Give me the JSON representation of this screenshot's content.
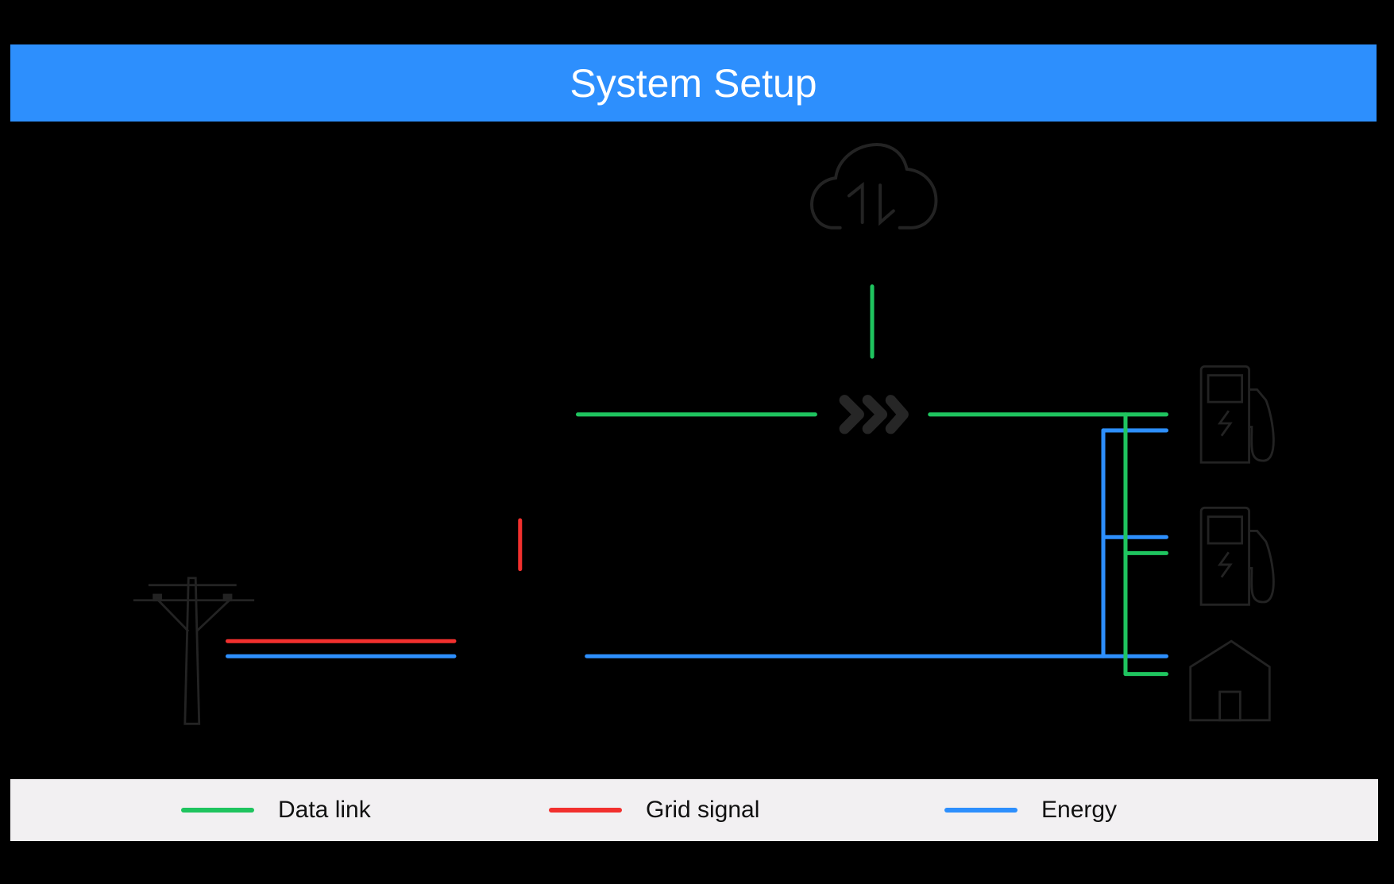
{
  "header": {
    "title": "System Setup"
  },
  "colors": {
    "data_link": "#1fc45f",
    "grid_signal": "#f2302e",
    "energy": "#2d8ffd",
    "icon": "#232323",
    "header_bg": "#2d8ffd",
    "legend_bg": "#f2f0f2"
  },
  "icons": [
    "cloud-sync-icon",
    "gateway-chevrons-icon",
    "ev-charger-icon",
    "ev-charger-icon",
    "house-icon",
    "utility-pole-icon"
  ],
  "legend": {
    "items": [
      {
        "label": "Data link",
        "color": "#1fc45f"
      },
      {
        "label": "Grid signal",
        "color": "#f2302e"
      },
      {
        "label": "Energy",
        "color": "#2d8ffd"
      }
    ]
  }
}
